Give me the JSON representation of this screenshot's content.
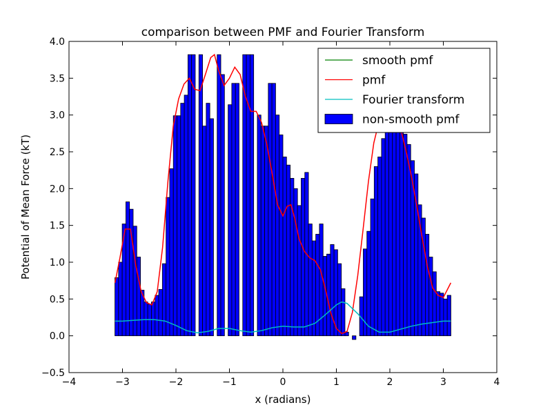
{
  "chart_data": {
    "type": "bar",
    "title": "comparison between PMF and Fourier Transform",
    "xlabel": "x (radians)",
    "ylabel": "Potential of Mean Force (kT)",
    "xlim": [
      -4,
      4
    ],
    "ylim": [
      -0.5,
      4.0
    ],
    "xticks": [
      -4,
      -3,
      -2,
      -1,
      0,
      1,
      2,
      3,
      4
    ],
    "xtick_labels": [
      "−4",
      "−3",
      "−2",
      "−1",
      "0",
      "1",
      "2",
      "3",
      "4"
    ],
    "yticks": [
      -0.5,
      0.0,
      0.5,
      1.0,
      1.5,
      2.0,
      2.5,
      3.0,
      3.5,
      4.0
    ],
    "ytick_labels": [
      "−0.5",
      "0.0",
      "0.5",
      "1.0",
      "1.5",
      "2.0",
      "2.5",
      "3.0",
      "3.5",
      "4.0"
    ],
    "grid": false,
    "legend_position": "top-right",
    "bars": {
      "name": "non-smooth pmf",
      "color": "#0000ff",
      "x_start": -3.1416,
      "x_end": 3.1416,
      "values": [
        0.79,
        1.0,
        1.52,
        1.82,
        1.72,
        1.49,
        1.07,
        0.62,
        0.46,
        0.43,
        0.46,
        0.55,
        0.63,
        0.98,
        1.88,
        2.27,
        2.99,
        2.99,
        3.16,
        3.27,
        3.82,
        3.82,
        0.0,
        3.82,
        2.85,
        3.16,
        2.95,
        0.0,
        3.82,
        3.55,
        0.0,
        3.14,
        3.43,
        3.43,
        0.0,
        3.82,
        3.82,
        3.82,
        0.0,
        3.0,
        2.85,
        2.85,
        3.43,
        3.43,
        3.0,
        2.73,
        2.43,
        2.32,
        2.14,
        2.0,
        1.77,
        2.14,
        2.22,
        1.52,
        1.29,
        1.38,
        1.52,
        1.08,
        1.11,
        1.24,
        1.17,
        0.98,
        0.64,
        0.05,
        0.0,
        -0.05,
        0.0,
        0.53,
        1.18,
        1.42,
        1.86,
        2.3,
        2.43,
        2.68,
        2.9,
        3.0,
        2.86,
        2.86,
        2.92,
        2.74,
        2.6,
        2.38,
        2.2,
        1.78,
        1.6,
        1.38,
        1.07,
        0.87,
        0.6,
        0.58,
        0.5,
        0.55
      ]
    },
    "series": [
      {
        "name": "smooth pmf",
        "color": "#008000",
        "x": [],
        "y": []
      },
      {
        "name": "pmf",
        "color": "#ff0000",
        "x": [
          -3.14,
          -3.05,
          -2.95,
          -2.85,
          -2.75,
          -2.65,
          -2.55,
          -2.45,
          -2.35,
          -2.25,
          -2.15,
          -2.05,
          -1.95,
          -1.85,
          -1.75,
          -1.65,
          -1.55,
          -1.45,
          -1.35,
          -1.28,
          -1.2,
          -1.1,
          -1.0,
          -0.9,
          -0.8,
          -0.7,
          -0.6,
          -0.5,
          -0.4,
          -0.3,
          -0.2,
          -0.1,
          0.0,
          0.08,
          0.15,
          0.22,
          0.3,
          0.4,
          0.5,
          0.6,
          0.7,
          0.8,
          0.9,
          1.0,
          1.1,
          1.2,
          1.3,
          1.4,
          1.5,
          1.6,
          1.7,
          1.8,
          1.9,
          2.0,
          2.1,
          2.2,
          2.3,
          2.4,
          2.5,
          2.6,
          2.7,
          2.8,
          2.9,
          3.0,
          3.14
        ],
        "y": [
          0.72,
          1.05,
          1.45,
          1.45,
          0.95,
          0.6,
          0.45,
          0.42,
          0.6,
          1.2,
          2.1,
          2.85,
          3.22,
          3.42,
          3.5,
          3.35,
          3.33,
          3.55,
          3.78,
          3.82,
          3.6,
          3.4,
          3.5,
          3.65,
          3.55,
          3.25,
          3.05,
          3.05,
          2.9,
          2.6,
          2.2,
          1.78,
          1.63,
          1.76,
          1.78,
          1.6,
          1.32,
          1.15,
          1.06,
          1.02,
          0.9,
          0.62,
          0.3,
          0.1,
          0.03,
          0.06,
          0.32,
          0.82,
          1.45,
          2.1,
          2.62,
          2.92,
          3.07,
          3.12,
          3.02,
          2.82,
          2.52,
          2.18,
          1.78,
          1.35,
          0.95,
          0.65,
          0.55,
          0.52,
          0.72
        ]
      },
      {
        "name": "Fourier transform",
        "color": "#00bfbf",
        "x": [
          -3.14,
          -3.0,
          -2.8,
          -2.6,
          -2.4,
          -2.2,
          -2.0,
          -1.8,
          -1.6,
          -1.4,
          -1.2,
          -1.0,
          -0.8,
          -0.6,
          -0.4,
          -0.2,
          0.0,
          0.2,
          0.4,
          0.6,
          0.8,
          1.0,
          1.1,
          1.2,
          1.4,
          1.6,
          1.8,
          2.0,
          2.2,
          2.4,
          2.6,
          2.8,
          3.0,
          3.14
        ],
        "y": [
          0.2,
          0.2,
          0.21,
          0.22,
          0.22,
          0.2,
          0.14,
          0.07,
          0.04,
          0.06,
          0.1,
          0.1,
          0.07,
          0.05,
          0.07,
          0.11,
          0.13,
          0.12,
          0.12,
          0.17,
          0.29,
          0.42,
          0.46,
          0.44,
          0.3,
          0.13,
          0.05,
          0.05,
          0.09,
          0.13,
          0.16,
          0.18,
          0.2,
          0.2
        ]
      }
    ]
  }
}
